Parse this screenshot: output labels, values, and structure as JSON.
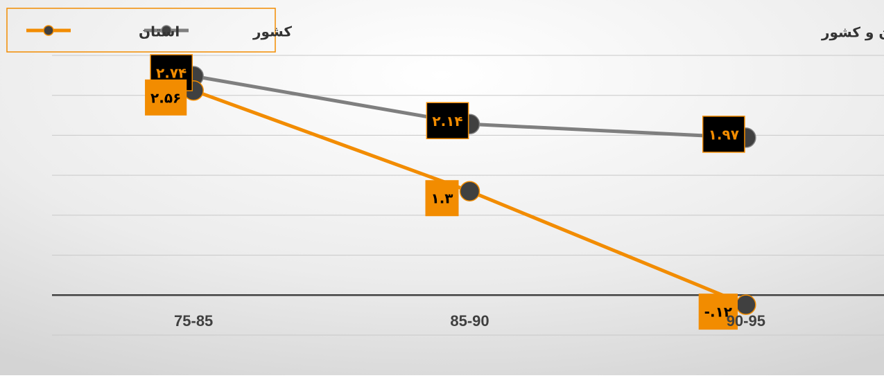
{
  "chart_data": {
    "type": "line",
    "title": "نرخ رشد جمعیت روستایی استان و کشور",
    "categories": [
      "75-85",
      "85-90",
      "90-95"
    ],
    "series": [
      {
        "name": "کشور",
        "color": "#7f7f7f",
        "values": [
          2.74,
          2.14,
          1.97
        ],
        "value_labels": [
          "۲.۷۴",
          "۲.۱۴",
          "۱.۹۷"
        ]
      },
      {
        "name": "استان",
        "color": "#f28c00",
        "values": [
          2.56,
          1.3,
          -0.12
        ],
        "value_labels": [
          "۲.۵۶",
          "۱.۳",
          "-.۱۲"
        ]
      }
    ],
    "ylim": [
      -0.5,
      3
    ],
    "yticks": [
      -0.5,
      0,
      0.5,
      1,
      1.5,
      2,
      2.5,
      3
    ],
    "grid": true,
    "legend": "top-left"
  }
}
